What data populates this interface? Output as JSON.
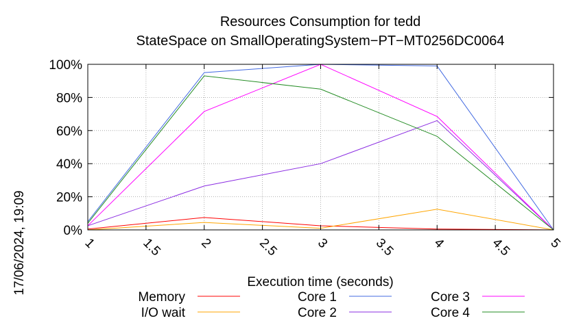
{
  "chart_data": {
    "type": "line",
    "title": "Resources Consumption for tedd",
    "subtitle": "StateSpace on SmallOperatingSystem−PT−MT0256DC0064",
    "xlabel": "Execution time (seconds)",
    "ylabel": "",
    "timestamp": "17/06/2024, 19:09",
    "xlim": [
      1,
      5
    ],
    "ylim": [
      0,
      100
    ],
    "x_ticks": [
      "1",
      "1.5",
      "2",
      "2.5",
      "3",
      "3.5",
      "4",
      "4.5",
      "5"
    ],
    "y_ticks": [
      "0%",
      "20%",
      "40%",
      "60%",
      "80%",
      "100%"
    ],
    "grid": true,
    "legend_position": "bottom",
    "x": [
      1,
      2,
      3,
      4,
      5
    ],
    "series": [
      {
        "name": "Memory",
        "color": "#ff0000",
        "values": [
          0.5,
          7.5,
          2.5,
          0.5,
          0
        ]
      },
      {
        "name": "I/O wait",
        "color": "#ffa500",
        "values": [
          0,
          4.5,
          1,
          12.5,
          0
        ]
      },
      {
        "name": "Core 1",
        "color": "#4169e1",
        "values": [
          5,
          95,
          100,
          99,
          0
        ]
      },
      {
        "name": "Core 2",
        "color": "#8a2be2",
        "values": [
          2.5,
          26.5,
          40,
          66,
          0
        ]
      },
      {
        "name": "Core 3",
        "color": "#ff00ff",
        "values": [
          2.5,
          71.5,
          100,
          68.5,
          0
        ]
      },
      {
        "name": "Core 4",
        "color": "#228b22",
        "values": [
          4,
          93,
          85,
          56.5,
          0
        ]
      }
    ]
  }
}
